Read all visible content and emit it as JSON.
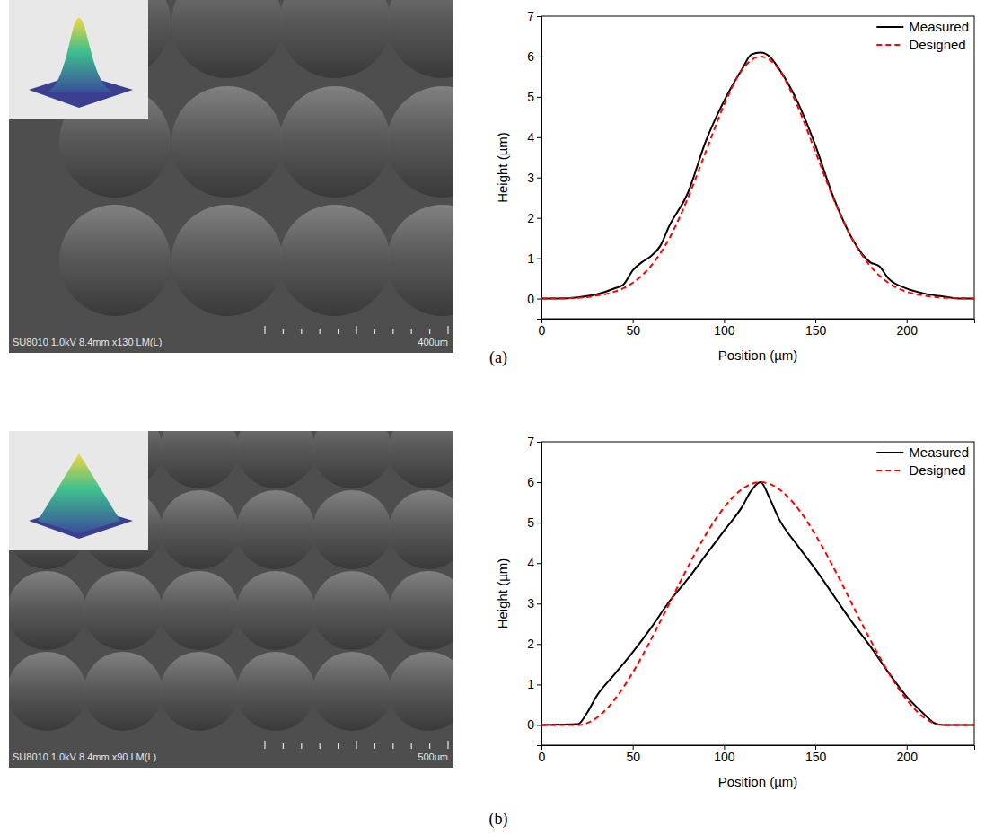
{
  "chart_data": [
    {
      "type": "line",
      "x_label": "Position (µm)",
      "y_label": "Height (µm)",
      "xlim": [
        0,
        237
      ],
      "ylim": [
        -0.5,
        7
      ],
      "xticks": [
        0,
        50,
        100,
        150,
        200
      ],
      "yticks": [
        0,
        1,
        2,
        3,
        4,
        5,
        6,
        7
      ],
      "legend": "upper right",
      "series": [
        {
          "name": "Measured",
          "color": "#000000",
          "line_style": "solid",
          "x": [
            0,
            10,
            20,
            30,
            40,
            45,
            50,
            55,
            60,
            65,
            70,
            80,
            90,
            100,
            110,
            115,
            120,
            125,
            130,
            140,
            150,
            160,
            170,
            180,
            185,
            190,
            200,
            210,
            220,
            230,
            237
          ],
          "values": [
            0,
            0,
            0.03,
            0.1,
            0.25,
            0.35,
            0.7,
            0.9,
            1.05,
            1.3,
            1.8,
            2.6,
            3.9,
            4.9,
            5.7,
            6.05,
            6.1,
            6.0,
            5.7,
            4.9,
            3.8,
            2.5,
            1.5,
            0.9,
            0.8,
            0.5,
            0.25,
            0.12,
            0.05,
            0,
            0
          ]
        },
        {
          "name": "Designed",
          "color": "#ff0000",
          "line_style": "dashed",
          "x": [
            0,
            10,
            20,
            30,
            40,
            50,
            60,
            70,
            80,
            90,
            100,
            110,
            120,
            130,
            140,
            150,
            160,
            170,
            180,
            190,
            200,
            210,
            220,
            230,
            237
          ],
          "values": [
            0,
            0.01,
            0.02,
            0.07,
            0.17,
            0.39,
            0.81,
            1.49,
            2.47,
            3.64,
            4.8,
            5.68,
            6.0,
            5.68,
            4.8,
            3.64,
            2.47,
            1.49,
            0.81,
            0.39,
            0.17,
            0.07,
            0.02,
            0.01,
            0
          ]
        }
      ]
    },
    {
      "type": "line",
      "x_label": "Position (µm)",
      "y_label": "Height (µm)",
      "xlim": [
        0,
        237
      ],
      "ylim": [
        -0.5,
        7
      ],
      "xticks": [
        0,
        50,
        100,
        150,
        200
      ],
      "yticks": [
        0,
        1,
        2,
        3,
        4,
        5,
        6,
        7
      ],
      "legend": "upper right",
      "series": [
        {
          "name": "Measured",
          "color": "#000000",
          "line_style": "solid",
          "x": [
            0,
            20,
            25,
            30,
            40,
            50,
            60,
            70,
            80,
            90,
            100,
            110,
            115,
            120,
            125,
            130,
            140,
            150,
            160,
            170,
            180,
            190,
            200,
            210,
            215,
            220,
            237
          ],
          "values": [
            0,
            0.02,
            0.3,
            0.7,
            1.25,
            1.8,
            2.4,
            3.05,
            3.6,
            4.2,
            4.8,
            5.4,
            5.8,
            6.0,
            5.6,
            5.1,
            4.45,
            3.85,
            3.2,
            2.55,
            1.95,
            1.3,
            0.7,
            0.25,
            0.05,
            0,
            0
          ]
        },
        {
          "name": "Designed",
          "color": "#ff0000",
          "line_style": "dashed",
          "x": [
            0,
            20,
            120,
            220,
            237
          ],
          "values": [
            0,
            0,
            6,
            0,
            0
          ]
        }
      ]
    }
  ],
  "images": [
    {
      "panel": "(a)",
      "caption": "SU8010 1.0kV 8.4mm x130 LM(L)",
      "scale_bar": "400um"
    },
    {
      "panel": "(b)",
      "caption": "SU8010 1.0kV 8.4mm x90 LM(L)",
      "scale_bar": "500um"
    }
  ]
}
